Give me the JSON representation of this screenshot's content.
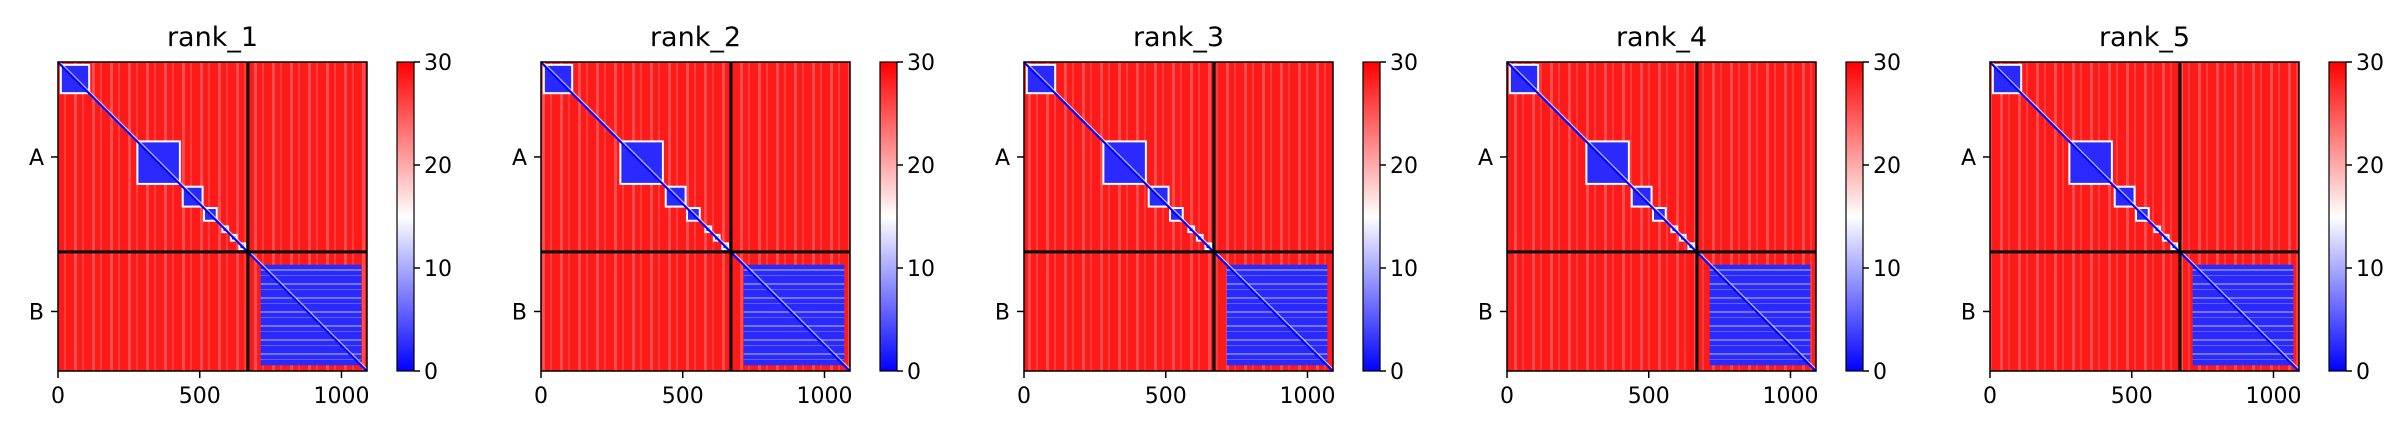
{
  "chart_data": [
    {
      "type": "heatmap",
      "title": "rank_1",
      "xticks": [
        0,
        500,
        1000
      ],
      "xlim": [
        0,
        1090
      ],
      "yticks": [
        "A",
        "B"
      ],
      "chain_boundary": 670,
      "colorbar": {
        "ticks": [
          0,
          10,
          20,
          30
        ],
        "range": [
          0,
          30
        ],
        "cmap": [
          "#0000ff",
          "#ffffff",
          "#ff0000"
        ]
      }
    },
    {
      "type": "heatmap",
      "title": "rank_2",
      "xticks": [
        0,
        500,
        1000
      ],
      "xlim": [
        0,
        1090
      ],
      "yticks": [
        "A",
        "B"
      ],
      "chain_boundary": 670,
      "colorbar": {
        "ticks": [
          0,
          10,
          20,
          30
        ],
        "range": [
          0,
          30
        ],
        "cmap": [
          "#0000ff",
          "#ffffff",
          "#ff0000"
        ]
      }
    },
    {
      "type": "heatmap",
      "title": "rank_3",
      "xticks": [
        0,
        500,
        1000
      ],
      "xlim": [
        0,
        1090
      ],
      "yticks": [
        "A",
        "B"
      ],
      "chain_boundary": 670,
      "colorbar": {
        "ticks": [
          0,
          10,
          20,
          30
        ],
        "range": [
          0,
          30
        ],
        "cmap": [
          "#0000ff",
          "#ffffff",
          "#ff0000"
        ]
      }
    },
    {
      "type": "heatmap",
      "title": "rank_4",
      "xticks": [
        0,
        500,
        1000
      ],
      "xlim": [
        0,
        1090
      ],
      "yticks": [
        "A",
        "B"
      ],
      "chain_boundary": 670,
      "colorbar": {
        "ticks": [
          0,
          10,
          20,
          30
        ],
        "range": [
          0,
          30
        ],
        "cmap": [
          "#0000ff",
          "#ffffff",
          "#ff0000"
        ]
      }
    },
    {
      "type": "heatmap",
      "title": "rank_5",
      "xticks": [
        0,
        500,
        1000
      ],
      "xlim": [
        0,
        1090
      ],
      "yticks": [
        "A",
        "B"
      ],
      "chain_boundary": 670,
      "colorbar": {
        "ticks": [
          0,
          10,
          20,
          30
        ],
        "range": [
          0,
          30
        ],
        "cmap": [
          "#0000ff",
          "#ffffff",
          "#ff0000"
        ]
      }
    }
  ]
}
